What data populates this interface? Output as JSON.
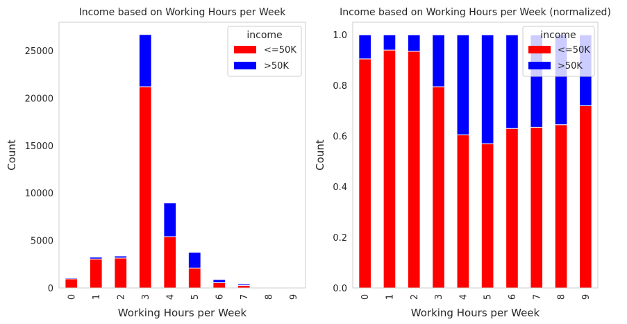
{
  "colors": {
    "series_0": "#ff0000",
    "series_1": "#0000ff",
    "frame": "#cccccc"
  },
  "chart_data": [
    {
      "type": "bar",
      "stacked": true,
      "title": "Income based on Working Hours per Week",
      "xlabel": "Working Hours per Week",
      "ylabel": "Count",
      "categories": [
        "0",
        "1",
        "2",
        "3",
        "4",
        "5",
        "6",
        "7",
        "8",
        "9"
      ],
      "ylim": [
        0,
        28000
      ],
      "yticks": [
        0,
        5000,
        10000,
        15000,
        20000,
        25000
      ],
      "grid": false,
      "legend": {
        "title": "income",
        "position": "top-right",
        "entries": [
          "<=50K",
          ">50K"
        ]
      },
      "series": [
        {
          "name": "<=50K",
          "values": [
            950,
            3050,
            3150,
            21200,
            5400,
            2100,
            550,
            250,
            30,
            15
          ]
        },
        {
          "name": ">50K",
          "values": [
            100,
            190,
            215,
            5500,
            3550,
            1650,
            330,
            150,
            15,
            5
          ]
        }
      ]
    },
    {
      "type": "bar",
      "stacked": true,
      "title": "Income based on Working Hours per Week (normalized)",
      "xlabel": "Working Hours per Week",
      "ylabel": "Count",
      "categories": [
        "0",
        "1",
        "2",
        "3",
        "4",
        "5",
        "6",
        "7",
        "8",
        "9"
      ],
      "ylim": [
        0,
        1.05
      ],
      "yticks": [
        "0.0",
        "0.2",
        "0.4",
        "0.6",
        "0.8",
        "1.0"
      ],
      "grid": false,
      "legend": {
        "title": "income",
        "position": "top-right",
        "entries": [
          "<=50K",
          ">50K"
        ]
      },
      "series": [
        {
          "name": "<=50K",
          "values": [
            0.905,
            0.94,
            0.935,
            0.795,
            0.605,
            0.57,
            0.63,
            0.635,
            0.645,
            0.72
          ]
        },
        {
          "name": ">50K",
          "values": [
            0.095,
            0.06,
            0.065,
            0.205,
            0.395,
            0.43,
            0.37,
            0.365,
            0.355,
            0.28
          ]
        }
      ]
    }
  ]
}
